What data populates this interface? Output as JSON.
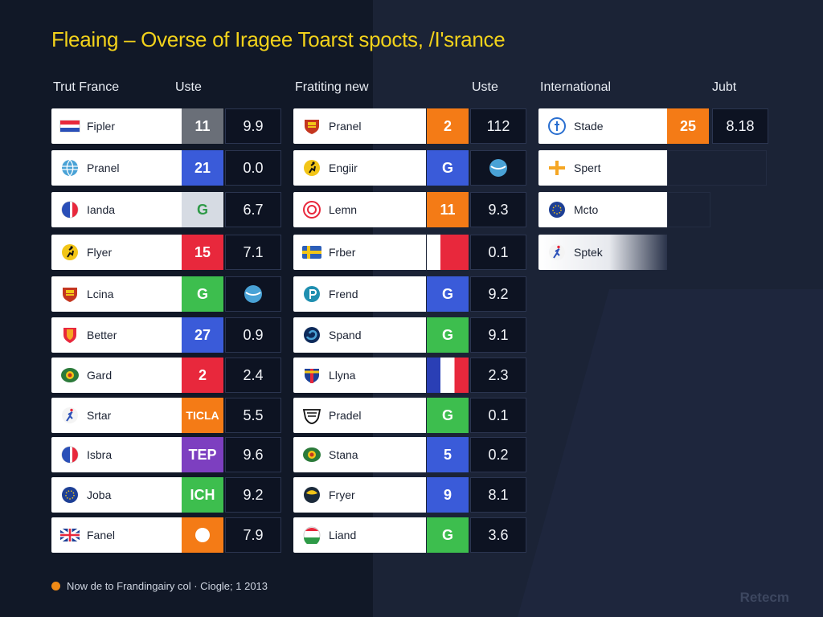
{
  "title": "Fleaing – Overse of Iragee Toarst spocts, /I'srance",
  "columns": [
    {
      "header_left": "Trut France",
      "header_right": "Uste",
      "rows": [
        {
          "name": "Fipler",
          "badge": "11",
          "badge_color": "#6a6f78",
          "value": "9.9",
          "icon": "flag-icon"
        },
        {
          "name": "Pranel",
          "badge": "21",
          "badge_color": "#3a5bd9",
          "value": "0.0",
          "icon": "globe-icon"
        },
        {
          "name": "Ianda",
          "badge": "G",
          "badge_color": "#ffffff",
          "value": "6.7",
          "icon": "france-flag-icon"
        },
        {
          "name": "Flyer",
          "badge": "15",
          "badge_color": "#e8283c",
          "value": "7.1",
          "icon": "runner-icon"
        },
        {
          "name": "Lcina",
          "badge": "G",
          "badge_color": "#3dbe4e",
          "value": "",
          "icon": "crest-icon"
        },
        {
          "name": "Better",
          "badge": "27",
          "badge_color": "#3a5bd9",
          "value": "0.9",
          "icon": "shield-icon"
        },
        {
          "name": "Gard",
          "badge": "2",
          "badge_color": "#e8283c",
          "value": "2.4",
          "icon": "emblem-icon"
        },
        {
          "name": "Srtar",
          "badge": "TICLA",
          "badge_color": "#f47b16",
          "value": "5.5",
          "icon": "athlete-icon"
        },
        {
          "name": "Isbra",
          "badge": "TEP",
          "badge_color": "#7d3fc0",
          "value": "9.6",
          "icon": "france-flag-icon"
        },
        {
          "name": "Joba",
          "badge": "ICH",
          "badge_color": "#3dbe4e",
          "value": "9.2",
          "icon": "eu-icon"
        },
        {
          "name": "Fanel",
          "badge": "",
          "badge_color": "#f47b16",
          "value": "7.9",
          "icon": "uk-flag-icon"
        }
      ]
    },
    {
      "header_left": "Fratiting new",
      "header_right": "Uste",
      "rows": [
        {
          "name": "Pranel",
          "badge": "2",
          "badge_color": "#f47b16",
          "value": "112",
          "icon": "crest-icon"
        },
        {
          "name": "Engiir",
          "badge": "G",
          "badge_color": "#3a5bd9",
          "value": "",
          "icon": "runner-icon"
        },
        {
          "name": "Lemn",
          "badge": "11",
          "badge_color": "#f47b16",
          "value": "9.3",
          "icon": "target-icon"
        },
        {
          "name": "Frber",
          "badge": "",
          "badge_color": "#e8283c",
          "value": "0.1",
          "icon": "sweden-flag-icon"
        },
        {
          "name": "Frend",
          "badge": "G",
          "badge_color": "#3a5bd9",
          "value": "9.2",
          "icon": "circle-p-icon"
        },
        {
          "name": "Spand",
          "badge": "G",
          "badge_color": "#3dbe4e",
          "value": "9.1",
          "icon": "swirl-icon"
        },
        {
          "name": "Llyna",
          "badge": "",
          "badge_color": "#2a3fb5",
          "value": "2.3",
          "icon": "club-crest-icon"
        },
        {
          "name": "Pradel",
          "badge": "G",
          "badge_color": "#3dbe4e",
          "value": "0.1",
          "icon": "badge-icon"
        },
        {
          "name": "Stana",
          "badge": "5",
          "badge_color": "#3a5bd9",
          "value": "0.2",
          "icon": "emblem-icon"
        },
        {
          "name": "Fryer",
          "badge": "9",
          "badge_color": "#3a5bd9",
          "value": "8.1",
          "icon": "dark-crest-icon"
        },
        {
          "name": "Liand",
          "badge": "G",
          "badge_color": "#3dbe4e",
          "value": "3.6",
          "icon": "italy-flag-icon"
        }
      ]
    },
    {
      "header_left": "International",
      "header_right": "Jubt",
      "rows": [
        {
          "name": "Stade",
          "badge": "25",
          "badge_color": "#f47b16",
          "value": "8.18",
          "icon": "circle-figure-icon"
        },
        {
          "name": "Spert",
          "badge": "",
          "badge_color": "",
          "value": "",
          "icon": "cross-icon"
        },
        {
          "name": "Mcto",
          "badge": "",
          "badge_color": "",
          "value": "",
          "icon": "eu-icon"
        },
        {
          "name": "Sptek",
          "badge": "",
          "badge_color": "",
          "value": "",
          "icon": "athlete-icon"
        }
      ]
    }
  ],
  "footer": {
    "text": "Now de to Frandingairy col · Ciogle; 1 2013",
    "dot_color": "#f08a16"
  },
  "watermark": "Retecm"
}
